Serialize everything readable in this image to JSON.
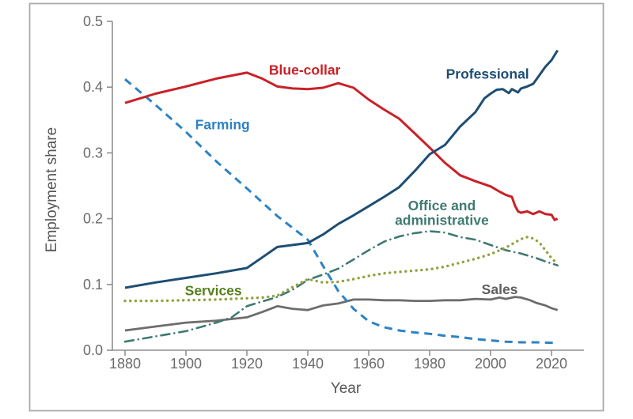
{
  "figure": {
    "border_color": "#ababab",
    "background": "#ffffff"
  },
  "axes": {
    "x_label": "Year",
    "y_label": "Employment share",
    "x_tick_labels": [
      "1880",
      "1900",
      "1920",
      "1940",
      "1960",
      "1980",
      "2000",
      "2020"
    ],
    "y_tick_labels": [
      "0.0",
      "0.1",
      "0.2",
      "0.3",
      "0.4",
      "0.5"
    ],
    "tick_label_color": "#6b6b6b",
    "axis_color": "#8f8f8f",
    "axis_title_color": "#575757"
  },
  "chart_data": {
    "type": "line",
    "title": "",
    "xlabel": "Year",
    "ylabel": "Employment share",
    "xlim": [
      1876,
      2031
    ],
    "ylim": [
      0.0,
      0.5
    ],
    "x_ticks": [
      1880,
      1900,
      1920,
      1940,
      1960,
      1980,
      2000,
      2020
    ],
    "y_ticks": [
      0.0,
      0.1,
      0.2,
      0.3,
      0.4,
      0.5
    ],
    "grid": false,
    "legend": "inline colored labels next to each line",
    "series": [
      {
        "id": "blue_collar",
        "name": "Blue-collar",
        "color": "#c92127",
        "style": "solid",
        "label": {
          "text": "Blue-collar",
          "year": 1939,
          "value": 0.426,
          "color": "#c92127"
        },
        "points": [
          [
            1880,
            0.376
          ],
          [
            1890,
            0.39
          ],
          [
            1900,
            0.401
          ],
          [
            1910,
            0.413
          ],
          [
            1920,
            0.422
          ],
          [
            1925,
            0.413
          ],
          [
            1930,
            0.401
          ],
          [
            1935,
            0.398
          ],
          [
            1940,
            0.397
          ],
          [
            1945,
            0.399
          ],
          [
            1950,
            0.406
          ],
          [
            1955,
            0.399
          ],
          [
            1960,
            0.381
          ],
          [
            1965,
            0.366
          ],
          [
            1970,
            0.352
          ],
          [
            1975,
            0.33
          ],
          [
            1980,
            0.308
          ],
          [
            1985,
            0.285
          ],
          [
            1990,
            0.266
          ],
          [
            1995,
            0.257
          ],
          [
            2000,
            0.249
          ],
          [
            2003,
            0.241
          ],
          [
            2005,
            0.236
          ],
          [
            2007,
            0.233
          ],
          [
            2008,
            0.22
          ],
          [
            2009,
            0.211
          ],
          [
            2010,
            0.209
          ],
          [
            2012,
            0.211
          ],
          [
            2014,
            0.207
          ],
          [
            2016,
            0.211
          ],
          [
            2018,
            0.207
          ],
          [
            2020,
            0.206
          ],
          [
            2021,
            0.198
          ],
          [
            2022,
            0.2
          ]
        ]
      },
      {
        "id": "professional",
        "name": "Professional",
        "color": "#1d4e74",
        "style": "solid",
        "label": {
          "text": "Professional",
          "year": 1999,
          "value": 0.42,
          "color": "#1d4e74"
        },
        "points": [
          [
            1880,
            0.095
          ],
          [
            1890,
            0.103
          ],
          [
            1900,
            0.11
          ],
          [
            1910,
            0.117
          ],
          [
            1920,
            0.125
          ],
          [
            1925,
            0.141
          ],
          [
            1930,
            0.157
          ],
          [
            1935,
            0.16
          ],
          [
            1940,
            0.163
          ],
          [
            1945,
            0.176
          ],
          [
            1950,
            0.192
          ],
          [
            1955,
            0.205
          ],
          [
            1960,
            0.219
          ],
          [
            1965,
            0.233
          ],
          [
            1970,
            0.248
          ],
          [
            1975,
            0.272
          ],
          [
            1980,
            0.298
          ],
          [
            1985,
            0.312
          ],
          [
            1990,
            0.34
          ],
          [
            1995,
            0.362
          ],
          [
            1998,
            0.383
          ],
          [
            2000,
            0.39
          ],
          [
            2002,
            0.396
          ],
          [
            2004,
            0.397
          ],
          [
            2006,
            0.391
          ],
          [
            2007,
            0.397
          ],
          [
            2009,
            0.392
          ],
          [
            2010,
            0.398
          ],
          [
            2012,
            0.401
          ],
          [
            2014,
            0.405
          ],
          [
            2016,
            0.418
          ],
          [
            2018,
            0.431
          ],
          [
            2020,
            0.441
          ],
          [
            2022,
            0.456
          ]
        ]
      },
      {
        "id": "farming",
        "name": "Farming",
        "color": "#2d82c4",
        "style": "dashed",
        "label": {
          "text": "Farming",
          "year": 1912,
          "value": 0.343,
          "color": "#2d82c4"
        },
        "points": [
          [
            1880,
            0.412
          ],
          [
            1890,
            0.373
          ],
          [
            1900,
            0.332
          ],
          [
            1910,
            0.287
          ],
          [
            1920,
            0.246
          ],
          [
            1930,
            0.204
          ],
          [
            1935,
            0.186
          ],
          [
            1940,
            0.168
          ],
          [
            1945,
            0.128
          ],
          [
            1950,
            0.09
          ],
          [
            1955,
            0.063
          ],
          [
            1960,
            0.044
          ],
          [
            1965,
            0.035
          ],
          [
            1970,
            0.03
          ],
          [
            1975,
            0.027
          ],
          [
            1980,
            0.025
          ],
          [
            1985,
            0.022
          ],
          [
            1990,
            0.02
          ],
          [
            1995,
            0.017
          ],
          [
            2000,
            0.015
          ],
          [
            2005,
            0.013
          ],
          [
            2010,
            0.012
          ],
          [
            2015,
            0.012
          ],
          [
            2022,
            0.011
          ]
        ]
      },
      {
        "id": "office_admin",
        "name": "Office and administrative",
        "color": "#3e7a72",
        "style": "dashdot",
        "label": {
          "color": "#3e7a72",
          "lines": [
            {
              "text": "Office and",
              "year": 1984,
              "value": 0.22
            },
            {
              "text": "administrative",
              "year": 1984,
              "value": 0.198
            }
          ]
        },
        "points": [
          [
            1880,
            0.013
          ],
          [
            1890,
            0.021
          ],
          [
            1900,
            0.029
          ],
          [
            1910,
            0.042
          ],
          [
            1915,
            0.05
          ],
          [
            1920,
            0.067
          ],
          [
            1925,
            0.074
          ],
          [
            1930,
            0.081
          ],
          [
            1935,
            0.092
          ],
          [
            1940,
            0.107
          ],
          [
            1945,
            0.115
          ],
          [
            1950,
            0.124
          ],
          [
            1955,
            0.138
          ],
          [
            1960,
            0.152
          ],
          [
            1965,
            0.165
          ],
          [
            1970,
            0.173
          ],
          [
            1975,
            0.178
          ],
          [
            1980,
            0.181
          ],
          [
            1985,
            0.179
          ],
          [
            1990,
            0.172
          ],
          [
            1995,
            0.168
          ],
          [
            2000,
            0.16
          ],
          [
            2005,
            0.152
          ],
          [
            2010,
            0.147
          ],
          [
            2015,
            0.14
          ],
          [
            2018,
            0.135
          ],
          [
            2020,
            0.132
          ],
          [
            2022,
            0.129
          ]
        ]
      },
      {
        "id": "services",
        "name": "Services",
        "color": "#93a13f",
        "style": "dotted",
        "label": {
          "text": "Services",
          "year": 1909,
          "value": 0.091,
          "color": "#56801d"
        },
        "points": [
          [
            1880,
            0.075
          ],
          [
            1890,
            0.075
          ],
          [
            1900,
            0.076
          ],
          [
            1910,
            0.077
          ],
          [
            1915,
            0.078
          ],
          [
            1920,
            0.079
          ],
          [
            1925,
            0.08
          ],
          [
            1930,
            0.083
          ],
          [
            1935,
            0.096
          ],
          [
            1940,
            0.108
          ],
          [
            1945,
            0.103
          ],
          [
            1950,
            0.104
          ],
          [
            1955,
            0.108
          ],
          [
            1960,
            0.113
          ],
          [
            1965,
            0.117
          ],
          [
            1970,
            0.119
          ],
          [
            1975,
            0.121
          ],
          [
            1980,
            0.123
          ],
          [
            1985,
            0.127
          ],
          [
            1990,
            0.133
          ],
          [
            1995,
            0.139
          ],
          [
            2000,
            0.146
          ],
          [
            2005,
            0.156
          ],
          [
            2008,
            0.164
          ],
          [
            2010,
            0.169
          ],
          [
            2012,
            0.172
          ],
          [
            2014,
            0.17
          ],
          [
            2016,
            0.164
          ],
          [
            2018,
            0.152
          ],
          [
            2020,
            0.14
          ],
          [
            2022,
            0.131
          ]
        ]
      },
      {
        "id": "sales",
        "name": "Sales",
        "color": "#6d6d6d",
        "style": "solid",
        "label": {
          "text": "Sales",
          "year": 2003,
          "value": 0.0925,
          "color": "#5e5e5e"
        },
        "points": [
          [
            1880,
            0.03
          ],
          [
            1890,
            0.036
          ],
          [
            1900,
            0.042
          ],
          [
            1910,
            0.045
          ],
          [
            1920,
            0.05
          ],
          [
            1925,
            0.058
          ],
          [
            1930,
            0.067
          ],
          [
            1935,
            0.063
          ],
          [
            1940,
            0.061
          ],
          [
            1945,
            0.068
          ],
          [
            1950,
            0.071
          ],
          [
            1955,
            0.077
          ],
          [
            1960,
            0.077
          ],
          [
            1965,
            0.076
          ],
          [
            1970,
            0.076
          ],
          [
            1975,
            0.075
          ],
          [
            1980,
            0.075
          ],
          [
            1985,
            0.076
          ],
          [
            1990,
            0.076
          ],
          [
            1995,
            0.078
          ],
          [
            2000,
            0.077
          ],
          [
            2003,
            0.08
          ],
          [
            2005,
            0.078
          ],
          [
            2008,
            0.081
          ],
          [
            2010,
            0.08
          ],
          [
            2013,
            0.076
          ],
          [
            2015,
            0.072
          ],
          [
            2018,
            0.068
          ],
          [
            2020,
            0.064
          ],
          [
            2022,
            0.061
          ]
        ]
      }
    ]
  }
}
